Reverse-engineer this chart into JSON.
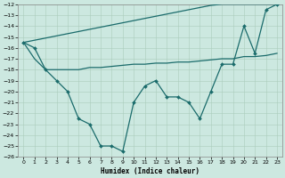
{
  "xlabel": "Humidex (Indice chaleur)",
  "background_color": "#cce8e0",
  "grid_color": "#aaccbb",
  "line_color": "#1a6b6b",
  "x": [
    0,
    1,
    2,
    3,
    4,
    5,
    6,
    7,
    8,
    9,
    10,
    11,
    12,
    13,
    14,
    15,
    16,
    17,
    18,
    19,
    20,
    21,
    22,
    23
  ],
  "line_zigzag": [
    -15.5,
    -16.0,
    -18.0,
    -19.0,
    -20.0,
    -22.5,
    -23.0,
    -25.0,
    -25.0,
    -25.5,
    -21.0,
    -19.5,
    -19.0,
    -20.5,
    -20.5,
    -21.0,
    -22.5,
    -20.0,
    -17.5,
    -17.5,
    -14.0,
    -16.5,
    -12.5,
    -12.0
  ],
  "line_straight1": [
    -15.5,
    -15.3,
    -15.1,
    -14.9,
    -14.7,
    -14.5,
    -14.3,
    -14.1,
    -13.9,
    -13.7,
    -13.5,
    -13.3,
    -13.1,
    -12.9,
    -12.7,
    -12.5,
    -12.3,
    -12.1,
    -12.0,
    -12.0,
    -12.0,
    -12.0,
    -12.0,
    -12.0
  ],
  "line_flat": [
    -15.5,
    -17.0,
    -18.0,
    -18.0,
    -18.0,
    -18.0,
    -17.8,
    -17.8,
    -17.7,
    -17.6,
    -17.5,
    -17.5,
    -17.4,
    -17.4,
    -17.3,
    -17.3,
    -17.2,
    -17.1,
    -17.0,
    -17.0,
    -16.8,
    -16.8,
    -16.7,
    -16.5
  ],
  "ylim": [
    -26,
    -12
  ],
  "xlim": [
    -0.5,
    23.5
  ],
  "yticks": [
    -12,
    -13,
    -14,
    -15,
    -16,
    -17,
    -18,
    -19,
    -20,
    -21,
    -22,
    -23,
    -24,
    -25,
    -26
  ],
  "xticks": [
    0,
    1,
    2,
    3,
    4,
    5,
    6,
    7,
    8,
    9,
    10,
    11,
    12,
    13,
    14,
    15,
    16,
    17,
    18,
    19,
    20,
    21,
    22,
    23
  ]
}
